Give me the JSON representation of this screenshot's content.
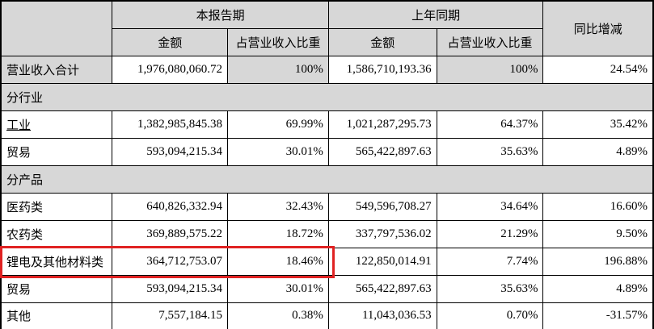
{
  "colors": {
    "header_bg": "#d7d7d7",
    "highlight_border": "#e02222",
    "grid_border": "#000000",
    "background": "#ffffff"
  },
  "table": {
    "header": {
      "corner": "",
      "current_period": "本报告期",
      "prior_period": "上年同期",
      "yoy": "同比增减",
      "amount": "金额",
      "pct": "占营业收入比重"
    },
    "rows": [
      {
        "label": "营业收入合计",
        "section": false,
        "shaded": true,
        "cells": [
          "1,976,080,060.72",
          "100%",
          "1,586,710,193.36",
          "100%",
          "24.54%"
        ]
      },
      {
        "label": "分行业",
        "section": true
      },
      {
        "label": "工业",
        "section": false,
        "underline": true,
        "cells": [
          "1,382,985,845.38",
          "69.99%",
          "1,021,287,295.73",
          "64.37%",
          "35.42%"
        ]
      },
      {
        "label": "贸易",
        "section": false,
        "cells": [
          "593,094,215.34",
          "30.01%",
          "565,422,897.63",
          "35.63%",
          "4.89%"
        ]
      },
      {
        "label": "分产品",
        "section": true
      },
      {
        "label": "医药类",
        "section": false,
        "cells": [
          "640,826,332.94",
          "32.43%",
          "549,596,708.27",
          "34.64%",
          "16.60%"
        ]
      },
      {
        "label": "农药类",
        "section": false,
        "cells": [
          "369,889,575.22",
          "18.72%",
          "337,797,536.02",
          "21.29%",
          "9.50%"
        ]
      },
      {
        "label": "锂电及其他材料类",
        "section": false,
        "highlight": true,
        "cells": [
          "364,712,753.07",
          "18.46%",
          "122,850,014.91",
          "7.74%",
          "196.88%"
        ]
      },
      {
        "label": "贸易",
        "section": false,
        "cells": [
          "593,094,215.34",
          "30.01%",
          "565,422,897.63",
          "35.63%",
          "4.89%"
        ]
      },
      {
        "label": "其他",
        "section": false,
        "cells": [
          "7,557,184.15",
          "0.38%",
          "11,043,036.53",
          "0.70%",
          "-31.57%"
        ]
      }
    ],
    "cell_names": [
      "current-amount-cell",
      "current-pct-cell",
      "prior-amount-cell",
      "prior-pct-cell",
      "yoy-change-cell"
    ],
    "shaded_pct_indices": [
      1,
      3
    ]
  }
}
